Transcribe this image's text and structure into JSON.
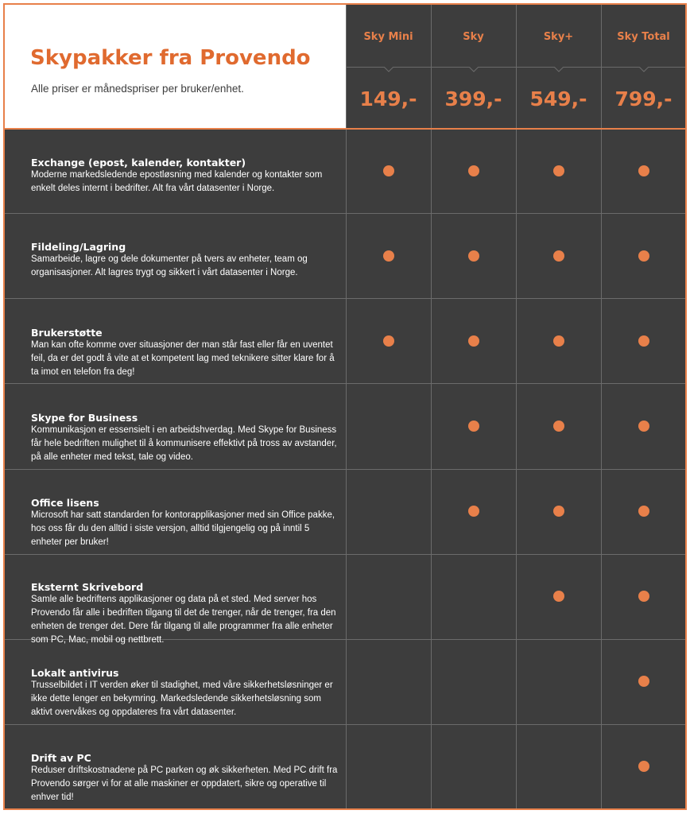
{
  "header": {
    "title": "Skypakker fra Provendo",
    "subtitle": "Alle priser er månedspriser per bruker/enhet."
  },
  "plans": [
    {
      "name": "Sky Mini",
      "price": "149,-"
    },
    {
      "name": "Sky",
      "price": "399,-"
    },
    {
      "name": "Sky+",
      "price": "549,-"
    },
    {
      "name": "Sky Total",
      "price": "799,-"
    }
  ],
  "colors": {
    "accent": "#e8804a",
    "title": "#e06a2f",
    "background": "#3d3d3d",
    "grid": "#6b6b6b"
  },
  "features": [
    {
      "title": "Exchange (epost, kalender, kontakter)",
      "description": "Moderne markedsledende epostløsning med kalender og kontakter som enkelt deles internt i bedrifter. Alt fra vårt datasenter i Norge.",
      "included": [
        true,
        true,
        true,
        true
      ]
    },
    {
      "title": "Fildeling/Lagring",
      "description": "Samarbeide, lagre og dele dokumenter på tvers av enheter, team og organisasjoner. Alt lagres trygt og sikkert i vårt datasenter i Norge.",
      "included": [
        true,
        true,
        true,
        true
      ]
    },
    {
      "title": "Brukerstøtte",
      "description": "Man kan ofte komme over situasjoner der man står fast eller får en uventet feil, da er det godt å vite at et kompetent lag med teknikere sitter klare for å ta imot en telefon fra deg!",
      "included": [
        true,
        true,
        true,
        true
      ]
    },
    {
      "title": "Skype for Business",
      "description": "Kommunikasjon er essensielt i en arbeidshverdag. Med Skype for Business får hele bedriften mulighet til å kommunisere effektivt på tross av avstander, på alle enheter med tekst, tale og video.",
      "included": [
        false,
        true,
        true,
        true
      ]
    },
    {
      "title": "Office lisens",
      "description": "Microsoft har satt standarden for kontorapplikasjoner med sin Office pakke, hos oss får du den alltid i siste versjon, alltid tilgjengelig og på inntil 5 enheter per bruker!",
      "included": [
        false,
        true,
        true,
        true
      ]
    },
    {
      "title": "Eksternt Skrivebord",
      "description": "Samle alle bedriftens applikasjoner og data på et sted. Med server hos Provendo får alle i bedriften tilgang til det de trenger, når de trenger, fra den enheten de trenger det. Dere får tilgang til alle programmer fra alle enheter som PC, Mac, mobil og nettbrett.",
      "included": [
        false,
        false,
        true,
        true
      ]
    },
    {
      "title": "Lokalt antivirus",
      "description": "Trusselbildet i IT verden øker til stadighet, med våre sikkerhetsløsninger er ikke dette lenger en bekymring. Markedsledende sikkerhetsløsning som aktivt overvåkes og oppdateres fra vårt datasenter.",
      "included": [
        false,
        false,
        false,
        true
      ]
    },
    {
      "title": "Drift av PC",
      "description": "Reduser driftskostnadene på PC parken og øk sikkerheten. Med PC drift fra Provendo sørger vi for at alle maskiner er oppdatert, sikre og operative til enhver tid!",
      "included": [
        false,
        false,
        false,
        true
      ]
    }
  ]
}
